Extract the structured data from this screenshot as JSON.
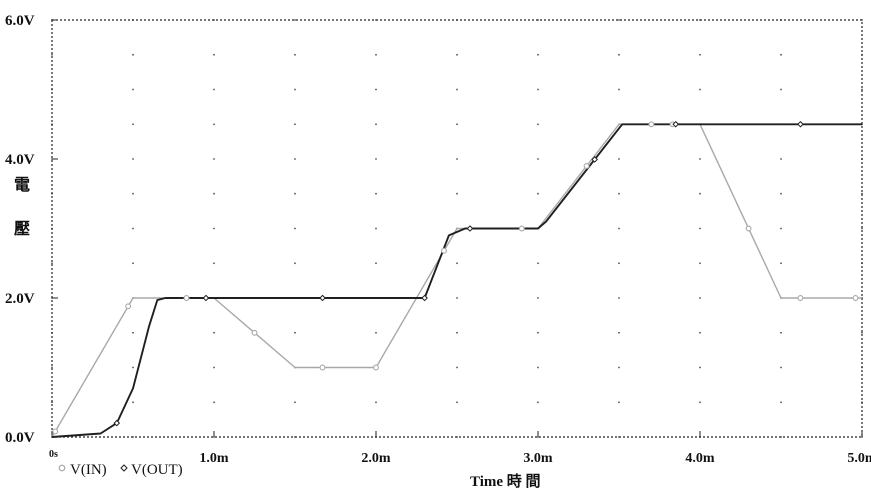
{
  "chart_data": {
    "type": "line",
    "xlabel": "Time 時 間",
    "ylabel": "電壓",
    "ylabel_chars": [
      "電",
      "壓"
    ],
    "xlim": [
      0,
      5.0
    ],
    "ylim": [
      0,
      6.0
    ],
    "x_ticks": [
      {
        "value": 0,
        "label": "0s"
      },
      {
        "value": 1.0,
        "label": "1.0m"
      },
      {
        "value": 2.0,
        "label": "2.0m"
      },
      {
        "value": 3.0,
        "label": "3.0m"
      },
      {
        "value": 4.0,
        "label": "4.0m"
      },
      {
        "value": 5.0,
        "label": "5.0m"
      }
    ],
    "y_ticks": [
      {
        "value": 0,
        "label": "0.0V"
      },
      {
        "value": 2.0,
        "label": "2.0V"
      },
      {
        "value": 4.0,
        "label": "4.0V"
      },
      {
        "value": 6.0,
        "label": "6.0V"
      }
    ],
    "grid": true,
    "legend": "bottom-left",
    "series": [
      {
        "name": "V(IN)",
        "color": "#a8a8a8",
        "marker": "circle",
        "x": [
          0,
          0.5,
          1.0,
          1.5,
          2.0,
          2.5,
          3.0,
          3.5,
          4.0,
          4.5,
          5.0
        ],
        "y": [
          0,
          2.0,
          2.0,
          1.0,
          1.0,
          3.0,
          3.0,
          4.5,
          4.5,
          2.0,
          2.0
        ]
      },
      {
        "name": "V(OUT)",
        "color": "#202020",
        "marker": "diamond",
        "x": [
          0,
          0.3,
          0.4,
          0.5,
          0.6,
          0.65,
          0.7,
          2.3,
          2.45,
          2.55,
          3.0,
          3.05,
          3.52,
          5.0
        ],
        "y": [
          0,
          0.05,
          0.2,
          0.7,
          1.6,
          1.97,
          2.0,
          2.0,
          2.9,
          3.0,
          3.0,
          3.1,
          4.5,
          4.5
        ]
      }
    ]
  }
}
